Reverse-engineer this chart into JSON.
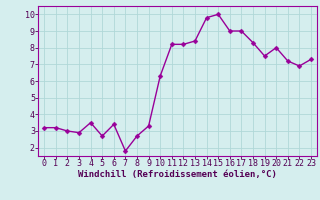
{
  "x": [
    0,
    1,
    2,
    3,
    4,
    5,
    6,
    7,
    8,
    9,
    10,
    11,
    12,
    13,
    14,
    15,
    16,
    17,
    18,
    19,
    20,
    21,
    22,
    23
  ],
  "y": [
    3.2,
    3.2,
    3.0,
    2.9,
    3.5,
    2.7,
    3.4,
    1.8,
    2.7,
    3.3,
    6.3,
    8.2,
    8.2,
    8.4,
    9.8,
    10.0,
    9.0,
    9.0,
    8.3,
    7.5,
    8.0,
    7.2,
    6.9,
    7.3
  ],
  "xlabel": "Windchill (Refroidissement éolien,°C)",
  "ylim": [
    1.5,
    10.5
  ],
  "xlim": [
    -0.5,
    23.5
  ],
  "yticks": [
    2,
    3,
    4,
    5,
    6,
    7,
    8,
    9,
    10
  ],
  "xticks": [
    0,
    1,
    2,
    3,
    4,
    5,
    6,
    7,
    8,
    9,
    10,
    11,
    12,
    13,
    14,
    15,
    16,
    17,
    18,
    19,
    20,
    21,
    22,
    23
  ],
  "line_color": "#990099",
  "marker_color": "#990099",
  "bg_color": "#d5eeee",
  "grid_color": "#b0d8d8",
  "spine_color": "#990099",
  "xlabel_color": "#550055",
  "tick_color": "#550055",
  "xlabel_fontsize": 6.5,
  "tick_fontsize": 6.0,
  "line_width": 1.0,
  "marker_size": 2.5
}
